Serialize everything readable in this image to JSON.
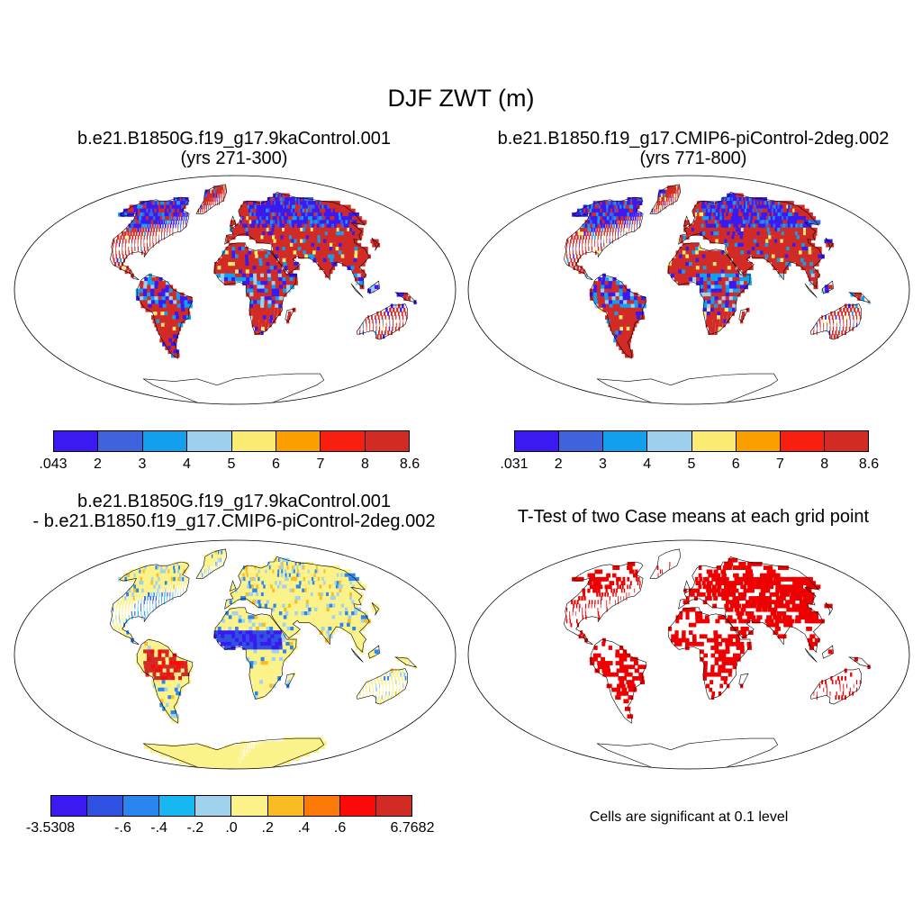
{
  "title": "DJF ZWT (m)",
  "panels": [
    {
      "line1": "b.e21.B1850G.f19_g17.9kaControl.001",
      "line2": "(yrs 271-300)"
    },
    {
      "line1": "b.e21.B1850.f19_g17.CMIP6-piControl-2deg.002",
      "line2": "(yrs 771-800)"
    },
    {
      "line1": "b.e21.B1850G.f19_g17.9kaControl.001",
      "line2": "- b.e21.B1850.f19_g17.CMIP6-piControl-2deg.002"
    },
    {
      "line1": "T-Test of two Case means at each grid point"
    }
  ],
  "colorbars": {
    "p1": {
      "labels": [
        ".043",
        "2",
        "3",
        "4",
        "5",
        "6",
        "7",
        "8",
        "8.6"
      ],
      "colors": [
        "#3a1af0",
        "#3f63dc",
        "#12a0ee",
        "#9dd0ee",
        "#fbeb72",
        "#fb9f00",
        "#f81f10",
        "#d22b26"
      ]
    },
    "p2": {
      "labels": [
        ".031",
        "2",
        "3",
        "4",
        "5",
        "6",
        "7",
        "8",
        "8.6"
      ],
      "colors": [
        "#3a1af0",
        "#3f63dc",
        "#12a0ee",
        "#9dd0ee",
        "#fbeb72",
        "#fb9f00",
        "#f81f10",
        "#d22b26"
      ]
    },
    "p3": {
      "labels": [
        "-3.5308",
        "-.6",
        "-.4",
        "-.2",
        ".0",
        ".2",
        ".4",
        ".6",
        "6.7682"
      ],
      "colors": [
        "#3a1af0",
        "#3052e2",
        "#2a86ee",
        "#17b8f2",
        "#a0d2ee",
        "#fbf28a",
        "#fbbb22",
        "#fb7a0a",
        "#fb0a0a",
        "#d22b26"
      ]
    }
  },
  "significance_note": "Cells are significant at 0.1 level",
  "colors": {
    "ttest": "#ee0000",
    "land_outline": "#000000"
  }
}
